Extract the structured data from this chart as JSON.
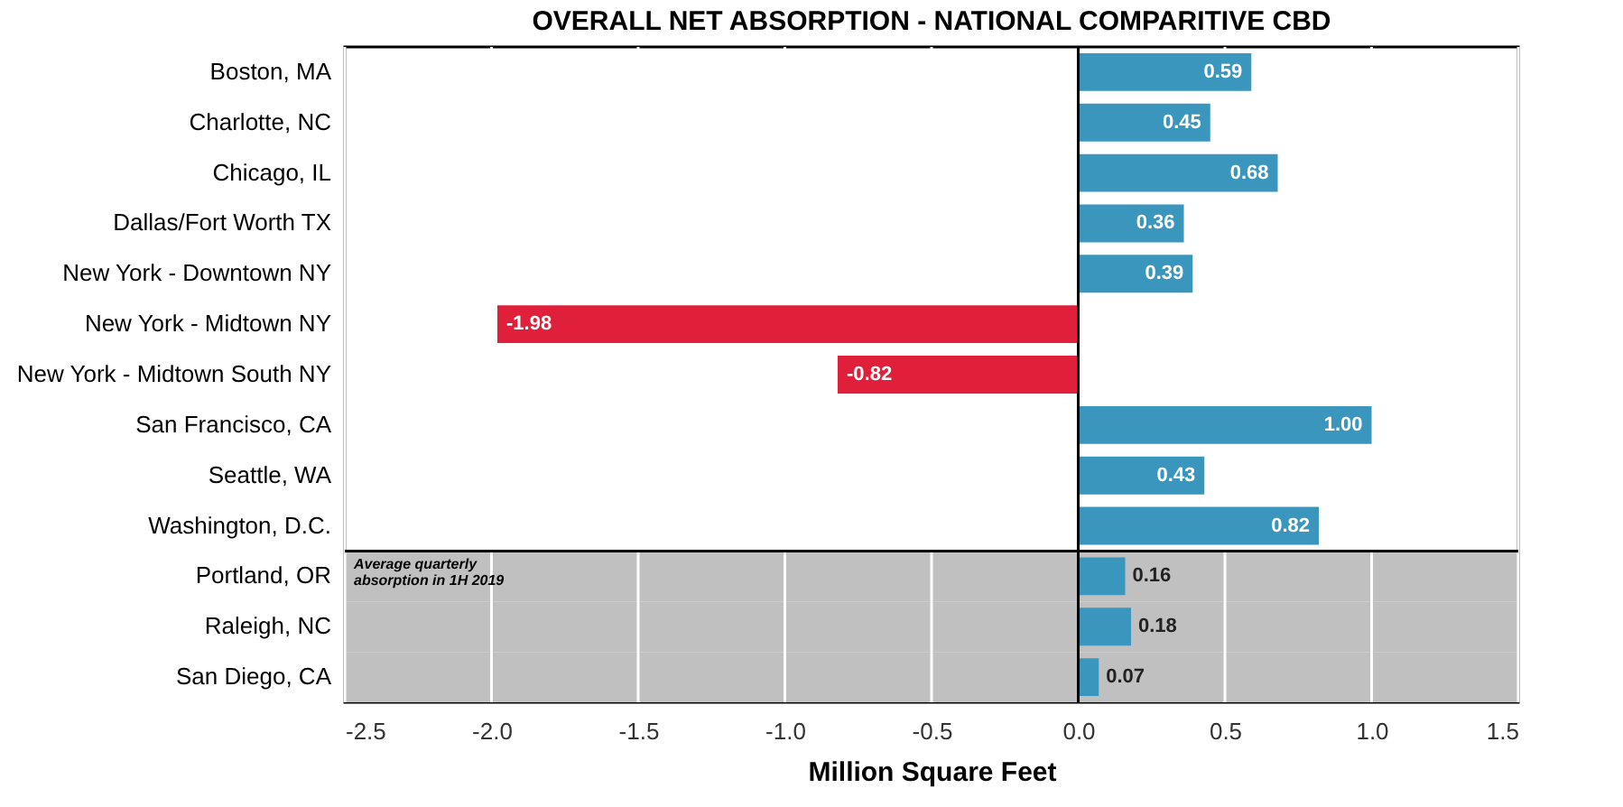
{
  "chart_data": {
    "type": "bar",
    "orientation": "horizontal",
    "title": "OVERALL NET ABSORPTION - NATIONAL COMPARITIVE CBD",
    "xlabel": "Million Square Feet",
    "categories": [
      "Boston, MA",
      "Charlotte, NC",
      "Chicago, IL",
      "Dallas/Fort Worth TX",
      "New York - Downtown NY",
      "New York - Midtown NY",
      "New York - Midtown South NY",
      "San Francisco, CA",
      "Seattle, WA",
      "Washington, D.C.",
      "Portland, OR",
      "Raleigh, NC",
      "San Diego, CA"
    ],
    "values": [
      0.59,
      0.45,
      0.68,
      0.36,
      0.39,
      -1.98,
      -0.82,
      1.0,
      0.43,
      0.82,
      0.16,
      0.18,
      0.07
    ],
    "value_labels": [
      "0.59",
      "0.45",
      "0.68",
      "0.36",
      "0.39",
      "-1.98",
      "-0.82",
      "1.00",
      "0.43",
      "0.82",
      "0.16",
      "0.18",
      "0.07"
    ],
    "colors": [
      "#3a96bd",
      "#3a96bd",
      "#3a96bd",
      "#3a96bd",
      "#3a96bd",
      "#e01f3a",
      "#e01f3a",
      "#3a96bd",
      "#3a96bd",
      "#3a96bd",
      "#3a96bd",
      "#3a96bd",
      "#3a96bd"
    ],
    "xlim": [
      -2.5,
      1.5
    ],
    "xticks": [
      {
        "value": -2.5,
        "label": "-2.5"
      },
      {
        "value": -2,
        "label": "-2.0"
      },
      {
        "value": -1.5,
        "label": "-1.5"
      },
      {
        "value": -1,
        "label": "-1.0"
      },
      {
        "value": -0.5,
        "label": "-0.5"
      },
      {
        "value": 0,
        "label": "0.0"
      },
      {
        "value": 0.5,
        "label": "0.5"
      },
      {
        "value": 1,
        "label": "1.0"
      },
      {
        "value": 1.5,
        "label": "1.5"
      }
    ],
    "grid": "x",
    "bands": [
      {
        "axis": "y",
        "from": "Portland, OR",
        "to": "San Diego, CA",
        "label": "Average quarterly absorption in 1H 2019",
        "color": "#c0c0c0"
      }
    ]
  }
}
